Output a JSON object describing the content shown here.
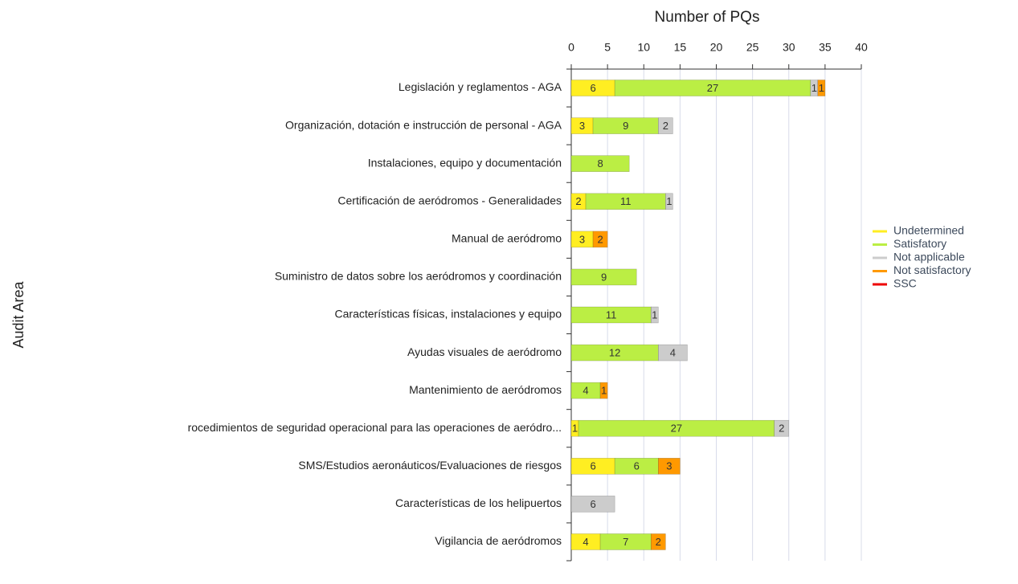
{
  "chart_data": {
    "type": "stacked_bar_horizontal",
    "title": "Number of PQs",
    "y_axis_label": "Audit Area",
    "categories": [
      "Legislación y reglamentos - AGA",
      "Organización, dotación e instrucción de personal - AGA",
      "Instalaciones, equipo y documentación",
      "Certificación de aeródromos - Generalidades",
      "Manual de aeródromo",
      "Suministro de datos sobre los aeródromos y coordinación",
      "Características físicas, instalaciones y equipo",
      "Ayudas visuales de aeródromo",
      "Mantenimiento de aeródromos",
      "rocedimientos de seguridad operacional para las operaciones de aeródro...",
      "SMS/Estudios aeronáuticos/Evaluaciones de riesgos",
      "Características de los helipuertos",
      "Vigilancia de aeródromos"
    ],
    "series": [
      {
        "name": "Undetermined",
        "color": "#ffee22",
        "values": [
          6,
          3,
          null,
          2,
          3,
          null,
          null,
          null,
          null,
          1,
          6,
          null,
          4
        ]
      },
      {
        "name": "Satisfatory",
        "color": "#bbee44",
        "values": [
          27,
          9,
          8,
          11,
          null,
          9,
          11,
          12,
          4,
          27,
          6,
          null,
          7
        ]
      },
      {
        "name": "Not applicable",
        "color": "#cccccc",
        "values": [
          1,
          2,
          null,
          1,
          null,
          null,
          1,
          4,
          null,
          2,
          null,
          6,
          null
        ]
      },
      {
        "name": "Not satisfactory",
        "color": "#ff9900",
        "values": [
          1,
          null,
          null,
          null,
          2,
          null,
          null,
          null,
          1,
          null,
          3,
          null,
          2
        ]
      },
      {
        "name": "SSC",
        "color": "#ee0000",
        "values": [
          null,
          null,
          null,
          null,
          null,
          null,
          null,
          null,
          null,
          null,
          null,
          null,
          null
        ]
      }
    ],
    "xlim": [
      0,
      40
    ],
    "xticks": [
      0,
      5,
      10,
      15,
      20,
      25,
      30,
      35,
      40
    ],
    "grid": true,
    "legend": "right"
  }
}
